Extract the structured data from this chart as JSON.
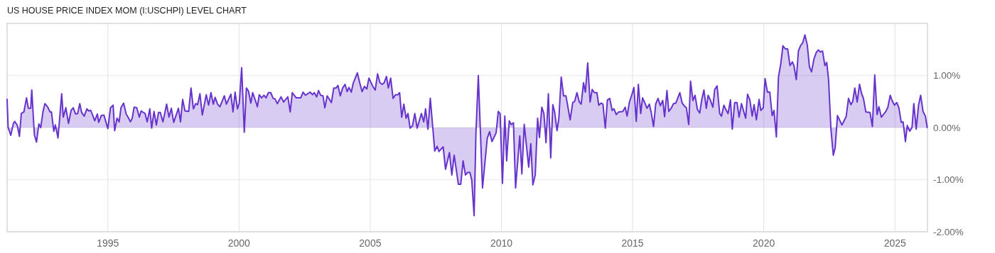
{
  "chart_data": {
    "type": "area",
    "title": "US HOUSE PRICE INDEX MOM (I:USCHPI) LEVEL CHART",
    "xlim": [
      1991.16,
      2026.24
    ],
    "xticks": [
      1995,
      2000,
      2005,
      2010,
      2015,
      2020,
      2025
    ],
    "ylim": [
      -2,
      2
    ],
    "yticks": [
      {
        "value": -2,
        "label": "-2.00%"
      },
      {
        "value": -1,
        "label": "-1.00%"
      },
      {
        "value": 0,
        "label": "0.00%"
      },
      {
        "value": 1,
        "label": "1.00%"
      }
    ],
    "grid": true,
    "series": [
      {
        "color": "#6633cc",
        "x": [
          1991.16,
          1991.2,
          1991.3,
          1991.4,
          1991.45,
          1991.55,
          1991.63,
          1991.7,
          1991.8,
          1991.9,
          1991.97,
          1992.06,
          1992.1,
          1992.2,
          1992.28,
          1992.37,
          1992.44,
          1992.53,
          1992.6,
          1992.7,
          1992.8,
          1992.85,
          1992.94,
          1993.0,
          1993.1,
          1993.2,
          1993.24,
          1993.3,
          1993.4,
          1993.5,
          1993.6,
          1993.68,
          1993.77,
          1993.85,
          1993.93,
          1994.0,
          1994.1,
          1994.2,
          1994.27,
          1994.35,
          1994.5,
          1994.6,
          1994.65,
          1994.75,
          1994.85,
          1995.0,
          1995.1,
          1995.2,
          1995.26,
          1995.35,
          1995.43,
          1995.5,
          1995.6,
          1995.7,
          1995.77,
          1995.86,
          1995.93,
          1996.0,
          1996.1,
          1996.2,
          1996.27,
          1996.35,
          1996.42,
          1996.5,
          1996.6,
          1996.67,
          1996.76,
          1996.85,
          1996.93,
          1997.0,
          1997.1,
          1997.24,
          1997.33,
          1997.42,
          1997.51,
          1997.69,
          1997.77,
          1997.85,
          1997.94,
          1998.08,
          1998.17,
          1998.26,
          1998.35,
          1998.42,
          1998.51,
          1998.6,
          1998.75,
          1998.84,
          1998.93,
          1999.02,
          1999.09,
          1999.18,
          1999.27,
          1999.44,
          1999.52,
          1999.69,
          1999.77,
          1999.85,
          1999.94,
          2000.01,
          2000.1,
          2000.2,
          2000.28,
          2000.36,
          2000.45,
          2000.52,
          2000.61,
          2000.7,
          2000.77,
          2000.86,
          2000.95,
          2001.03,
          2001.12,
          2001.21,
          2001.3,
          2001.37,
          2001.46,
          2001.6,
          2001.7,
          2001.86,
          2001.95,
          2002.03,
          2002.18,
          2002.35,
          2002.44,
          2002.53,
          2002.71,
          2002.8,
          2002.87,
          2002.96,
          2003.03,
          2003.11,
          2003.2,
          2003.27,
          2003.36,
          2003.52,
          2003.61,
          2003.7,
          2003.77,
          2003.86,
          2003.95,
          2004.04,
          2004.12,
          2004.19,
          2004.28,
          2004.35,
          2004.51,
          2004.6,
          2004.69,
          2004.78,
          2004.87,
          2004.95,
          2005.1,
          2005.19,
          2005.28,
          2005.37,
          2005.46,
          2005.53,
          2005.62,
          2005.69,
          2005.78,
          2005.87,
          2005.96,
          2006.05,
          2006.12,
          2006.2,
          2006.28,
          2006.37,
          2006.44,
          2006.52,
          2006.61,
          2006.7,
          2006.79,
          2006.95,
          2007.04,
          2007.11,
          2007.2,
          2007.29,
          2007.46,
          2007.55,
          2007.62,
          2007.78,
          2007.87,
          2008.02,
          2008.11,
          2008.2,
          2008.36,
          2008.45,
          2008.54,
          2008.63,
          2008.72,
          2008.8,
          2008.87,
          2008.96,
          2009.03,
          2009.12,
          2009.28,
          2009.46,
          2009.55,
          2009.64,
          2009.8,
          2009.88,
          2009.95,
          2010.04,
          2010.13,
          2010.2,
          2010.3,
          2010.37,
          2010.46,
          2010.54,
          2010.7,
          2010.78,
          2010.87,
          2011.04,
          2011.12,
          2011.2,
          2011.29,
          2011.38,
          2011.45,
          2011.54,
          2011.62,
          2011.7,
          2011.79,
          2011.88,
          2011.96,
          2012.03,
          2012.12,
          2012.19,
          2012.28,
          2012.37,
          2012.46,
          2012.62,
          2012.72,
          2012.79,
          2012.88,
          2012.97,
          2013.04,
          2013.13,
          2013.2,
          2013.29,
          2013.38,
          2013.46,
          2013.55,
          2013.64,
          2013.71,
          2013.8,
          2013.87,
          2013.96,
          2014.04,
          2014.13,
          2014.22,
          2014.29,
          2014.38,
          2014.47,
          2014.63,
          2014.72,
          2014.79,
          2014.88,
          2014.97,
          2015.05,
          2015.14,
          2015.22,
          2015.31,
          2015.38,
          2015.47,
          2015.55,
          2015.64,
          2015.71,
          2015.8,
          2015.88,
          2015.97,
          2016.06,
          2016.15,
          2016.22,
          2016.31,
          2016.38,
          2016.47,
          2016.56,
          2016.65,
          2016.8,
          2016.89,
          2016.98,
          2017.05,
          2017.14,
          2017.21,
          2017.3,
          2017.38,
          2017.47,
          2017.56,
          2017.63,
          2017.72,
          2017.81,
          2017.88,
          2017.97,
          2018.06,
          2018.13,
          2018.22,
          2018.32,
          2018.39,
          2018.48,
          2018.55,
          2018.64,
          2018.73,
          2018.8,
          2018.89,
          2018.98,
          2019.06,
          2019.15,
          2019.31,
          2019.38,
          2019.47,
          2019.56,
          2019.63,
          2019.72,
          2019.82,
          2019.89,
          2019.98,
          2020.05,
          2020.14,
          2020.23,
          2020.32,
          2020.39,
          2020.48,
          2020.56,
          2020.65,
          2020.73,
          2020.82,
          2020.91,
          2021.0,
          2021.09,
          2021.15,
          2021.24,
          2021.32,
          2021.41,
          2021.48,
          2021.57,
          2021.66,
          2021.74,
          2021.82,
          2021.91,
          2022.0,
          2022.08,
          2022.16,
          2022.24,
          2022.33,
          2022.4,
          2022.47,
          2022.56,
          2022.65,
          2022.72,
          2022.81,
          2022.98,
          2023.14,
          2023.23,
          2023.32,
          2023.39,
          2023.47,
          2023.56,
          2023.65,
          2023.73,
          2023.8,
          2023.89,
          2024.05,
          2024.14,
          2024.23,
          2024.32,
          2024.39,
          2024.48,
          2024.64,
          2024.73,
          2024.82,
          2024.89,
          2024.98,
          2025.07,
          2025.15,
          2025.24,
          2025.31,
          2025.4,
          2025.47,
          2025.56,
          2025.65,
          2025.72,
          2025.81,
          2025.9,
          2025.98,
          2026.07,
          2026.16,
          2026.23
        ],
        "values": [
          0.54,
          0,
          -0.15,
          0.08,
          0.12,
          0.04,
          -0.17,
          0.27,
          0.3,
          0.57,
          0.37,
          0.37,
          0.72,
          -0.14,
          -0.28,
          0.07,
          0,
          0.31,
          0.46,
          0.4,
          0.3,
          0.3,
          -0.07,
          0.05,
          -0.2,
          0.4,
          0.65,
          0.2,
          0.38,
          0.08,
          0.33,
          0.38,
          0.26,
          0.27,
          0.46,
          0.29,
          0.22,
          0.36,
          0.32,
          0.33,
          0.13,
          0.26,
          0.1,
          0.23,
          0.24,
          -0.02,
          0.38,
          0.43,
          -0.06,
          0.18,
          0.11,
          0.38,
          0.47,
          0.26,
          0.2,
          0.11,
          0.18,
          0.39,
          0.38,
          0.2,
          0.32,
          0.29,
          0.27,
          0.11,
          0.36,
          -0.01,
          0.31,
          0.05,
          0.29,
          0.29,
          0.11,
          0.45,
          0.2,
          0.37,
          0.1,
          0.37,
          0.11,
          0.54,
          0.32,
          0.31,
          0.76,
          0.36,
          0.46,
          0.44,
          0.65,
          0.24,
          0.63,
          0.43,
          0.67,
          0.45,
          0.58,
          0.45,
          0.4,
          0.61,
          0.45,
          0.64,
          0.3,
          0.68,
          0.36,
          0.47,
          1.15,
          -0.09,
          0.76,
          0.7,
          0.47,
          0.67,
          0.54,
          0.4,
          0.63,
          0.57,
          0.62,
          0.57,
          0.67,
          0.67,
          0.56,
          0.55,
          0.46,
          0.59,
          0.49,
          0.59,
          0.3,
          0.67,
          0.57,
          0.57,
          0.68,
          0.62,
          0.68,
          0.63,
          0.67,
          0.59,
          0.71,
          0.62,
          0.61,
          0.38,
          0.61,
          0.48,
          0.76,
          0.76,
          0.81,
          0.61,
          0.76,
          0.83,
          0.69,
          0.77,
          0.68,
          0.85,
          1.05,
          0.86,
          0.69,
          0.79,
          0.74,
          0.95,
          0.79,
          0.72,
          1.03,
          0.86,
          0.83,
          0.86,
          0.98,
          0.76,
          0.95,
          0.56,
          0.63,
          0.63,
          0.67,
          0.2,
          0.45,
          0.18,
          0.27,
          -0.01,
          0.03,
          0.27,
          -0.01,
          0.27,
          0.11,
          0.36,
          -0.03,
          0.56,
          -0.45,
          -0.36,
          -0.46,
          -0.37,
          -0.8,
          -0.48,
          -0.91,
          -0.53,
          -1.09,
          -1.09,
          -0.64,
          -0.91,
          -0.86,
          -0.86,
          -1.01,
          -1.69,
          -0.1,
          1.0,
          -1.16,
          -0.21,
          -0.08,
          -0.27,
          -0.1,
          0.31,
          0.27,
          -1.07,
          0.22,
          -0.64,
          0.13,
          0.06,
          0.09,
          -1.16,
          -0.16,
          -0.89,
          0.06,
          -0.76,
          -0.31,
          -1.1,
          -0.91,
          0.18,
          -0.19,
          0.39,
          0.27,
          -0.29,
          0.65,
          -0.58,
          0.44,
          0.3,
          -0.06,
          0.18,
          0.97,
          0.61,
          0.61,
          0.15,
          0.48,
          0.5,
          0.67,
          0.49,
          0.45,
          0.86,
          0.68,
          1.24,
          0.49,
          0.73,
          0.67,
          0.67,
          0.43,
          0.47,
          0.45,
          -0.01,
          0.53,
          0.56,
          0.33,
          0.36,
          0.25,
          0.3,
          0.31,
          0.39,
          0.22,
          0.49,
          0.63,
          0.77,
          0.12,
          0.83,
          0.27,
          0.57,
          0.47,
          0.37,
          0.45,
          0.29,
          0.02,
          0.45,
          0.56,
          0.42,
          0.52,
          0.21,
          0.71,
          0.31,
          0.37,
          0.46,
          0.47,
          0.67,
          0.47,
          0.41,
          0.38,
          0.06,
          0.89,
          0.52,
          0.62,
          0.35,
          0.28,
          0.52,
          0.72,
          0.37,
          0.62,
          0.52,
          0.39,
          0.73,
          0.8,
          0.27,
          0.22,
          0.43,
          0.35,
          0.27,
          0.53,
          -0.03,
          0.48,
          0.48,
          0.2,
          0.46,
          0.18,
          0.64,
          0.53,
          0.22,
          0.44,
          0.15,
          0.54,
          0.33,
          0.38,
          0.94,
          0.68,
          0.68,
          0.23,
          0.33,
          -0.18,
          0.97,
          1.23,
          1.57,
          1.51,
          1.51,
          1.19,
          1.26,
          1.19,
          0.92,
          1.47,
          1.58,
          1.62,
          1.78,
          1.58,
          1.17,
          1.07,
          1.31,
          1.44,
          1.49,
          1.45,
          1.47,
          1.19,
          1.25,
          0.92,
          -0.03,
          -0.53,
          -0.39,
          0.23,
          0.05,
          0.21,
          0.56,
          0.44,
          0.5,
          0.76,
          0.49,
          0.83,
          0.65,
          0.56,
          0.3,
          0.29,
          0.02,
          1.01,
          0.25,
          0.4,
          0.2,
          0.3,
          0.39,
          0.62,
          0.52,
          0.43,
          0.48,
          0.38,
          0.1,
          0.11,
          -0.27,
          0.04,
          -0.07,
          0,
          0.46,
          -0.03,
          0.43,
          0.62,
          0.31,
          0.22,
          0
        ]
      }
    ]
  }
}
